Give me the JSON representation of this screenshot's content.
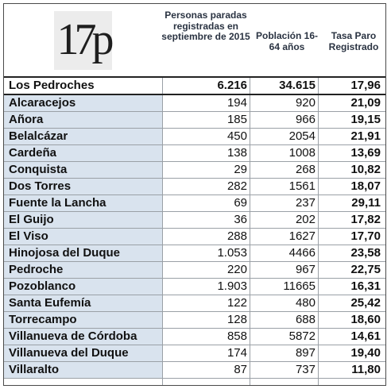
{
  "logo": {
    "text": "17p"
  },
  "headers": {
    "col1": "Personas paradas registradas en septiembre de 2015",
    "col2": "Población 16-64 años",
    "col3": "Tasa Paro Registrado"
  },
  "rows": [
    {
      "name": "Los Pedroches",
      "parados": "6.216",
      "poblacion": "34.615",
      "tasa": "17,96"
    },
    {
      "name": "Alcaracejos",
      "parados": "194",
      "poblacion": "920",
      "tasa": "21,09"
    },
    {
      "name": "Añora",
      "parados": "185",
      "poblacion": "966",
      "tasa": "19,15"
    },
    {
      "name": "Belalcázar",
      "parados": "450",
      "poblacion": "2054",
      "tasa": "21,91"
    },
    {
      "name": "Cardeña",
      "parados": "138",
      "poblacion": "1008",
      "tasa": "13,69"
    },
    {
      "name": "Conquista",
      "parados": "29",
      "poblacion": "268",
      "tasa": "10,82"
    },
    {
      "name": "Dos Torres",
      "parados": "282",
      "poblacion": "1561",
      "tasa": "18,07"
    },
    {
      "name": "Fuente la Lancha",
      "parados": "69",
      "poblacion": "237",
      "tasa": "29,11"
    },
    {
      "name": "El Guijo",
      "parados": "36",
      "poblacion": "202",
      "tasa": "17,82"
    },
    {
      "name": "El Viso",
      "parados": "288",
      "poblacion": "1627",
      "tasa": "17,70"
    },
    {
      "name": "Hinojosa del Duque",
      "parados": "1.053",
      "poblacion": "4466",
      "tasa": "23,58"
    },
    {
      "name": "Pedroche",
      "parados": "220",
      "poblacion": "967",
      "tasa": "22,75"
    },
    {
      "name": "Pozoblanco",
      "parados": "1.903",
      "poblacion": "11665",
      "tasa": "16,31"
    },
    {
      "name": "Santa Eufemía",
      "parados": "122",
      "poblacion": "480",
      "tasa": "25,42"
    },
    {
      "name": "Torrecampo",
      "parados": "128",
      "poblacion": "688",
      "tasa": "18,60"
    },
    {
      "name": "Villanueva de Córdoba",
      "parados": "858",
      "poblacion": "5872",
      "tasa": "14,61"
    },
    {
      "name": "Villanueva del Duque",
      "parados": "174",
      "poblacion": "897",
      "tasa": "19,40"
    },
    {
      "name": "Villaralto",
      "parados": "87",
      "poblacion": "737",
      "tasa": "11,80"
    }
  ],
  "colors": {
    "name_bg": "#d9e3ee",
    "header_text": "#2a3342",
    "logo_bg": "#ececec"
  }
}
